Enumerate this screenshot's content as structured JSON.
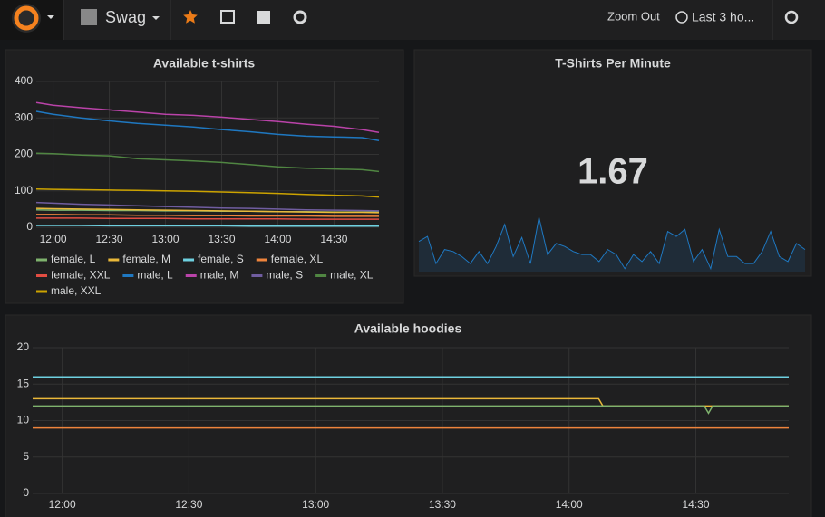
{
  "toolbar": {
    "dashboard": "Swag",
    "zoom_out": "Zoom Out",
    "time_range": "Last 3 ho..."
  },
  "chart_data": [
    {
      "type": "line",
      "title": "Available t-shirts",
      "x": [
        "11:51",
        "12:00",
        "12:15",
        "12:30",
        "12:45",
        "13:00",
        "13:15",
        "13:30",
        "13:45",
        "14:00",
        "14:15",
        "14:30",
        "14:45",
        "14:54"
      ],
      "xlim": [
        "11:51",
        "14:54"
      ],
      "xticks": [
        "12:00",
        "12:30",
        "13:00",
        "13:30",
        "14:00",
        "14:30"
      ],
      "ylim": [
        0,
        400
      ],
      "yticks": [
        0,
        100,
        200,
        300,
        400
      ],
      "grid": true,
      "legend": "bottom",
      "series": [
        {
          "name": "female, L",
          "color": "#7eb26d",
          "values": [
            48,
            47,
            47,
            46,
            46,
            45,
            45,
            44,
            44,
            43,
            43,
            42,
            42,
            42
          ]
        },
        {
          "name": "female, M",
          "color": "#eab839",
          "values": [
            52,
            51,
            50,
            49,
            48,
            47,
            46,
            45,
            44,
            43,
            42,
            41,
            41,
            40
          ]
        },
        {
          "name": "female, S",
          "color": "#6ed0e0",
          "values": [
            5,
            5,
            5,
            4,
            4,
            4,
            4,
            4,
            3,
            3,
            3,
            3,
            3,
            3
          ]
        },
        {
          "name": "female, XL",
          "color": "#ef843c",
          "values": [
            35,
            35,
            34,
            34,
            33,
            33,
            32,
            32,
            31,
            31,
            31,
            30,
            30,
            30
          ]
        },
        {
          "name": "female, XXL",
          "color": "#e24d42",
          "values": [
            25,
            25,
            25,
            24,
            24,
            24,
            23,
            23,
            23,
            23,
            22,
            22,
            22,
            22
          ]
        },
        {
          "name": "male, L",
          "color": "#1f78c1",
          "values": [
            318,
            310,
            300,
            292,
            285,
            280,
            275,
            268,
            262,
            255,
            250,
            248,
            246,
            238
          ]
        },
        {
          "name": "male, M",
          "color": "#ba43a9",
          "values": [
            342,
            335,
            328,
            322,
            316,
            310,
            307,
            302,
            296,
            290,
            283,
            277,
            268,
            260
          ]
        },
        {
          "name": "male, S",
          "color": "#705da0",
          "values": [
            68,
            66,
            63,
            61,
            59,
            57,
            55,
            53,
            52,
            50,
            48,
            47,
            46,
            45
          ]
        },
        {
          "name": "male, XL",
          "color": "#508642",
          "values": [
            203,
            202,
            198,
            196,
            188,
            185,
            182,
            178,
            172,
            166,
            162,
            160,
            158,
            153
          ]
        },
        {
          "name": "male, XXL",
          "color": "#cca300",
          "values": [
            105,
            104,
            103,
            102,
            101,
            100,
            99,
            97,
            95,
            93,
            90,
            88,
            86,
            83
          ]
        }
      ]
    },
    {
      "type": "stat",
      "title": "T-Shirts Per Minute",
      "value": 1.67,
      "color": "#1f78c1",
      "values": [
        30,
        35,
        8,
        22,
        20,
        15,
        8,
        20,
        8,
        25,
        47,
        15,
        34,
        8,
        54,
        17,
        28,
        25,
        20,
        17,
        17,
        10,
        22,
        17,
        3,
        17,
        10,
        20,
        8,
        40,
        35,
        42,
        10,
        22,
        3,
        42,
        15,
        15,
        8,
        8,
        20,
        40,
        15,
        10,
        28,
        22
      ]
    },
    {
      "type": "line",
      "title": "Available hoodies",
      "x": [
        "11:53",
        "14:07",
        "14:08",
        "14:32",
        "14:33",
        "14:34",
        "14:52"
      ],
      "xlim": [
        "11:53",
        "14:52"
      ],
      "xticks": [
        "12:00",
        "12:30",
        "13:00",
        "13:30",
        "14:00",
        "14:30"
      ],
      "ylim": [
        0,
        20
      ],
      "yticks": [
        0,
        5,
        10,
        15,
        20
      ],
      "grid": true,
      "series": [
        {
          "color": "#6ed0e0",
          "values": [
            16,
            16,
            16,
            16,
            16,
            16,
            16
          ]
        },
        {
          "color": "#eab839",
          "values": [
            13,
            13,
            12,
            12,
            12,
            12,
            12
          ]
        },
        {
          "color": "#7eb26d",
          "values": [
            12,
            12,
            12,
            12,
            11,
            12,
            12
          ]
        },
        {
          "color": "#ef843c",
          "values": [
            9,
            9,
            9,
            9,
            9,
            9,
            9
          ]
        }
      ]
    }
  ]
}
